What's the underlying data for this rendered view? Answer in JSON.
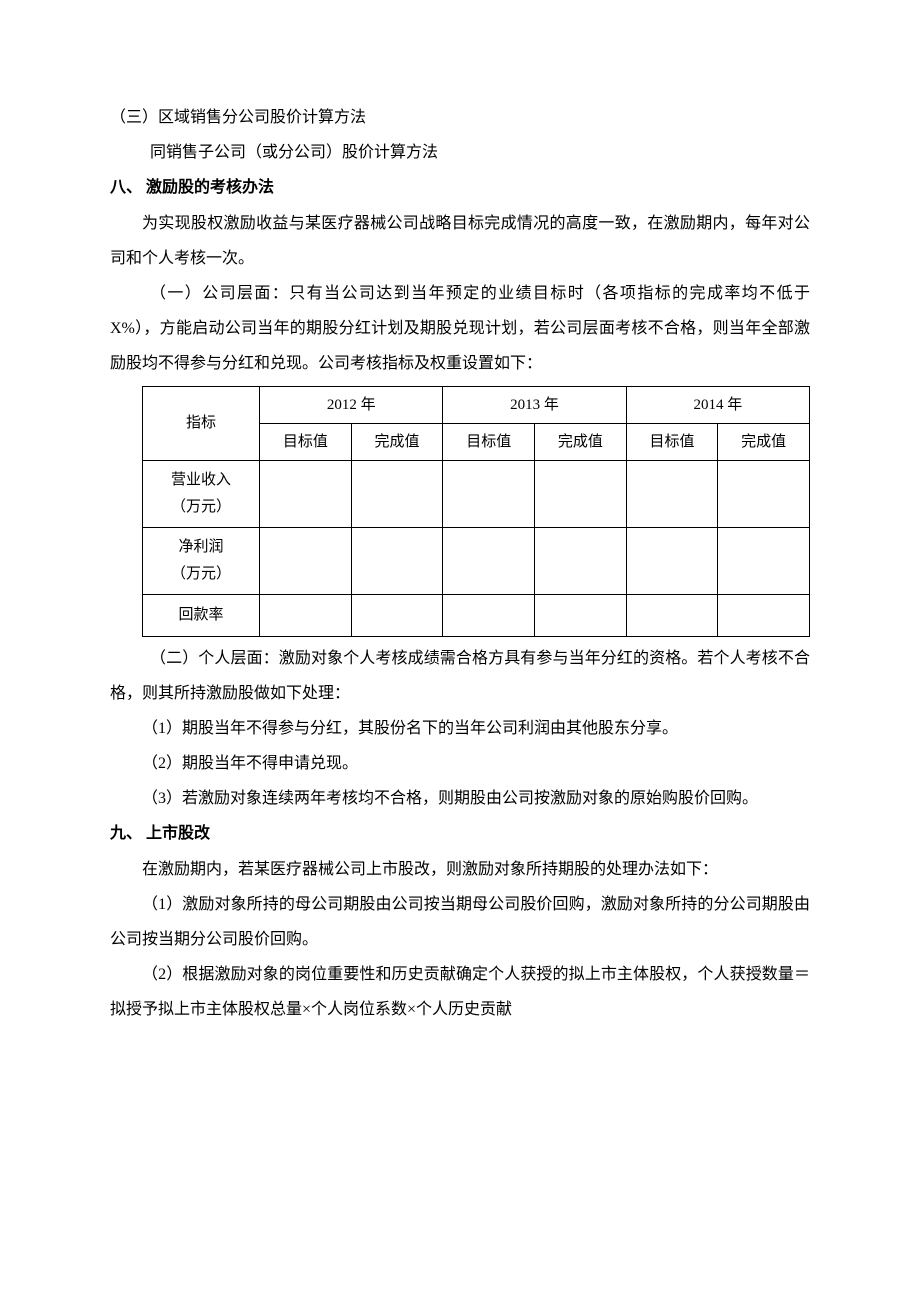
{
  "section_7_3": {
    "title": "（三）区域销售分公司股价计算方法",
    "line1": "同销售子公司（或分公司）股价计算方法"
  },
  "section_8": {
    "heading": "八、 激励股的考核办法",
    "intro": "为实现股权激励收益与某医疗器械公司战略目标完成情况的高度一致，在激励期内，每年对公司和个人考核一次。",
    "part1": "（一）公司层面：只有当公司达到当年预定的业绩目标时（各项指标的完成率均不低于 X%），方能启动公司当年的期股分红计划及期股兑现计划，若公司层面考核不合格，则当年全部激励股均不得参与分红和兑现。公司考核指标及权重设置如下：",
    "table": {
      "col_indicator": "指标",
      "years": [
        "2012 年",
        "2013 年",
        "2014 年"
      ],
      "sub_target": "目标值",
      "sub_actual": "完成值",
      "rows": [
        {
          "label_line1": "营业收入",
          "label_line2": "（万元）"
        },
        {
          "label_line1": "净利润",
          "label_line2": "（万元）"
        },
        {
          "label_line1": "回款率",
          "label_line2": ""
        }
      ]
    },
    "part2": "（二）个人层面：激励对象个人考核成绩需合格方具有参与当年分红的资格。若个人考核不合格，则其所持激励股做如下处理：",
    "item1": "（1）期股当年不得参与分红，其股份名下的当年公司利润由其他股东分享。",
    "item2": "（2）期股当年不得申请兑现。",
    "item3": "（3）若激励对象连续两年考核均不合格，则期股由公司按激励对象的原始购股价回购。"
  },
  "section_9": {
    "heading": "九、 上市股改",
    "intro": "在激励期内，若某医疗器械公司上市股改，则激励对象所持期股的处理办法如下：",
    "item1": "（1）激励对象所持的母公司期股由公司按当期母公司股价回购，激励对象所持的分公司期股由公司按当期分公司股价回购。",
    "item2": "（2）根据激励对象的岗位重要性和历史贡献确定个人获授的拟上市主体股权，个人获授数量＝拟授予拟上市主体股权总量×个人岗位系数×个人历史贡献"
  }
}
